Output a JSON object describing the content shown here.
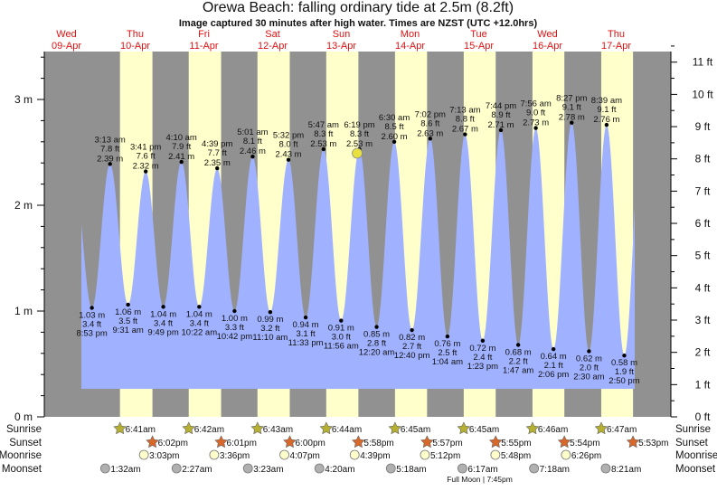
{
  "chart_data": {
    "type": "area",
    "title": "Orewa Beach: falling  ordinary tide at 2.5m (8.2ft)",
    "subtitle": "Image captured 30 minutes after high water. Times are NZST (UTC +12.0hrs)",
    "y_left_unit": "m",
    "y_right_unit": "ft",
    "ylim_m": [
      0,
      3.45
    ],
    "y_left_ticks": [
      "0 m",
      "1 m",
      "2 m",
      "3 m"
    ],
    "y_right_ticks": [
      "0 ft",
      "1 ft",
      "2 ft",
      "3 ft",
      "4 ft",
      "5 ft",
      "6 ft",
      "7 ft",
      "8 ft",
      "9 ft",
      "10 ft",
      "11 ft"
    ],
    "days": [
      {
        "dow": "Wed",
        "date": "09-Apr"
      },
      {
        "dow": "Thu",
        "date": "10-Apr"
      },
      {
        "dow": "Fri",
        "date": "11-Apr"
      },
      {
        "dow": "Sat",
        "date": "12-Apr"
      },
      {
        "dow": "Sun",
        "date": "13-Apr"
      },
      {
        "dow": "Mon",
        "date": "14-Apr"
      },
      {
        "dow": "Tue",
        "date": "15-Apr"
      },
      {
        "dow": "Wed",
        "date": "16-Apr"
      },
      {
        "dow": "Thu",
        "date": "17-Apr"
      }
    ],
    "extremes": [
      {
        "day": 0,
        "time": "8:53 pm",
        "m": 1.03,
        "ft": "3.4 ft",
        "type": "low"
      },
      {
        "day": 1,
        "time": "3:13 am",
        "m": 2.39,
        "ft": "7.8 ft",
        "type": "high"
      },
      {
        "day": 1,
        "time": "9:31 am",
        "m": 1.06,
        "ft": "3.5 ft",
        "type": "low"
      },
      {
        "day": 1,
        "time": "3:41 pm",
        "m": 2.32,
        "ft": "7.6 ft",
        "type": "high"
      },
      {
        "day": 1,
        "time": "9:49 pm",
        "m": 1.04,
        "ft": "3.4 ft",
        "type": "low"
      },
      {
        "day": 2,
        "time": "4:10 am",
        "m": 2.41,
        "ft": "7.9 ft",
        "type": "high"
      },
      {
        "day": 2,
        "time": "10:22 am",
        "m": 1.04,
        "ft": "3.4 ft",
        "type": "low"
      },
      {
        "day": 2,
        "time": "4:39 pm",
        "m": 2.35,
        "ft": "7.7 ft",
        "type": "high"
      },
      {
        "day": 2,
        "time": "10:42 pm",
        "m": 1.0,
        "ft": "3.3 ft",
        "type": "low"
      },
      {
        "day": 3,
        "time": "5:01 am",
        "m": 2.46,
        "ft": "8.1 ft",
        "type": "high"
      },
      {
        "day": 3,
        "time": "11:10 am",
        "m": 0.99,
        "ft": "3.2 ft",
        "type": "low"
      },
      {
        "day": 3,
        "time": "5:32 pm",
        "m": 2.43,
        "ft": "8.0 ft",
        "type": "high"
      },
      {
        "day": 3,
        "time": "11:33 pm",
        "m": 0.94,
        "ft": "3.1 ft",
        "type": "low"
      },
      {
        "day": 4,
        "time": "5:47 am",
        "m": 2.53,
        "ft": "8.3 ft",
        "type": "high"
      },
      {
        "day": 4,
        "time": "11:56 am",
        "m": 0.91,
        "ft": "3.0 ft",
        "type": "low"
      },
      {
        "day": 4,
        "time": "6:19 pm",
        "m": 2.53,
        "ft": "8.3 ft",
        "type": "high"
      },
      {
        "day": 5,
        "time": "12:20 am",
        "m": 0.85,
        "ft": "2.8 ft",
        "type": "low"
      },
      {
        "day": 5,
        "time": "6:30 am",
        "m": 2.6,
        "ft": "8.5 ft",
        "type": "high"
      },
      {
        "day": 5,
        "time": "12:40 pm",
        "m": 0.82,
        "ft": "2.7 ft",
        "type": "low"
      },
      {
        "day": 5,
        "time": "7:02 pm",
        "m": 2.63,
        "ft": "8.6 ft",
        "type": "high"
      },
      {
        "day": 6,
        "time": "1:04 am",
        "m": 0.76,
        "ft": "2.5 ft",
        "type": "low"
      },
      {
        "day": 6,
        "time": "7:13 am",
        "m": 2.67,
        "ft": "8.8 ft",
        "type": "high"
      },
      {
        "day": 6,
        "time": "1:23 pm",
        "m": 0.72,
        "ft": "2.4 ft",
        "type": "low"
      },
      {
        "day": 6,
        "time": "7:44 pm",
        "m": 2.71,
        "ft": "8.9 ft",
        "type": "high"
      },
      {
        "day": 7,
        "time": "1:47 am",
        "m": 0.68,
        "ft": "2.2 ft",
        "type": "low"
      },
      {
        "day": 7,
        "time": "7:56 am",
        "m": 2.73,
        "ft": "9.0 ft",
        "type": "high"
      },
      {
        "day": 7,
        "time": "2:06 pm",
        "m": 0.64,
        "ft": "2.1 ft",
        "type": "low"
      },
      {
        "day": 7,
        "time": "8:27 pm",
        "m": 2.78,
        "ft": "9.1 ft",
        "type": "high"
      },
      {
        "day": 8,
        "time": "2:30 am",
        "m": 0.62,
        "ft": "2.0 ft",
        "type": "low"
      },
      {
        "day": 8,
        "time": "8:39 am",
        "m": 2.76,
        "ft": "9.1 ft",
        "type": "high"
      },
      {
        "day": 8,
        "time": "2:50 pm",
        "m": 0.58,
        "ft": "1.9 ft",
        "type": "low"
      }
    ],
    "current": {
      "day": 4,
      "time": "6:49 pm",
      "m": 2.5
    },
    "rows": {
      "sunrise_label": "Sunrise",
      "sunset_label": "Sunset",
      "moonrise_label": "Moonrise",
      "moonset_label": "Moonset",
      "sunrise": [
        {
          "day": 1,
          "time": "6:41am"
        },
        {
          "day": 2,
          "time": "6:42am"
        },
        {
          "day": 3,
          "time": "6:43am"
        },
        {
          "day": 4,
          "time": "6:44am"
        },
        {
          "day": 5,
          "time": "6:45am"
        },
        {
          "day": 6,
          "time": "6:45am"
        },
        {
          "day": 7,
          "time": "6:46am"
        },
        {
          "day": 8,
          "time": "6:47am"
        }
      ],
      "sunset": [
        {
          "day": 1,
          "time": "6:02pm"
        },
        {
          "day": 2,
          "time": "6:01pm"
        },
        {
          "day": 3,
          "time": "6:00pm"
        },
        {
          "day": 4,
          "time": "5:58pm"
        },
        {
          "day": 5,
          "time": "5:57pm"
        },
        {
          "day": 6,
          "time": "5:55pm"
        },
        {
          "day": 7,
          "time": "5:54pm"
        },
        {
          "day": 8,
          "time": "5:53pm"
        }
      ],
      "moonrise": [
        {
          "day": 1,
          "time": "3:03pm"
        },
        {
          "day": 2,
          "time": "3:36pm"
        },
        {
          "day": 3,
          "time": "4:07pm"
        },
        {
          "day": 4,
          "time": "4:39pm"
        },
        {
          "day": 5,
          "time": "5:12pm"
        },
        {
          "day": 6,
          "time": "5:48pm"
        },
        {
          "day": 7,
          "time": "6:26pm"
        }
      ],
      "moonset": [
        {
          "day": 1,
          "time": "1:32am"
        },
        {
          "day": 2,
          "time": "2:27am"
        },
        {
          "day": 3,
          "time": "3:23am"
        },
        {
          "day": 4,
          "time": "4:20am"
        },
        {
          "day": 5,
          "time": "5:18am"
        },
        {
          "day": 6,
          "time": "6:17am"
        },
        {
          "day": 7,
          "time": "7:18am"
        },
        {
          "day": 8,
          "time": "8:21am"
        }
      ],
      "moon_phase": {
        "day": 6,
        "label": "Full Moon | 7:45pm"
      }
    }
  },
  "colors": {
    "night": "#919191",
    "day": "#ffffcc",
    "water": "#a0b2ff",
    "date_text": "#e01010",
    "sunrise_icon": "#b5b032",
    "sunset_icon": "#d8672a",
    "moonrise_icon": "#ffffcc",
    "moonset_icon": "#b0b0b0",
    "current_marker": "#e8e040"
  }
}
